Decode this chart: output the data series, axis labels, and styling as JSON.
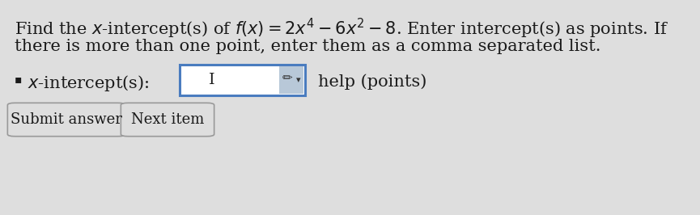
{
  "bg_color": "#dedede",
  "title_line1": "Find the $x$-intercept(s) of $f(x) = 2x^4 - 6x^2 - 8$. Enter intercept(s) as points. If",
  "title_line2": "there is more than one point, enter them as a comma separated list.",
  "label_text": "$x$-intercept(s):",
  "help_text": "help (points)",
  "submit_text": "Submit answer",
  "next_text": "Next item",
  "text_color": "#1a1a1a",
  "input_box_color": "#ffffff",
  "input_border_color": "#4a7cbf",
  "button_border_color": "#999999",
  "bullet_char": "▪",
  "fontsize_main": 15,
  "fontsize_btn": 13,
  "fig_width": 8.65,
  "fig_height": 2.66,
  "dpi": 100
}
